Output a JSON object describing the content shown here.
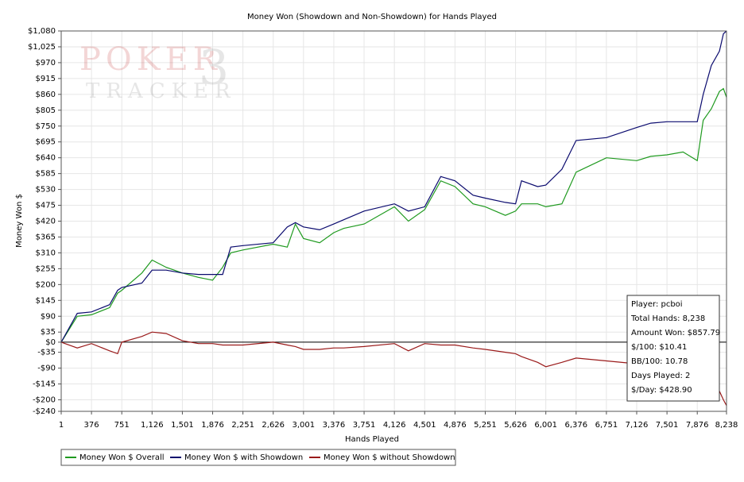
{
  "chart_data": {
    "type": "line",
    "title": "Money Won (Showdown and Non-Showdown) for Hands Played",
    "xlabel": "Hands Played",
    "ylabel": "Money Won $",
    "watermark": {
      "word1": "POKER",
      "word2": "TRACKER",
      "digit": "3"
    },
    "x": [
      1,
      200,
      376,
      600,
      700,
      751,
      1000,
      1126,
      1300,
      1501,
      1700,
      1876,
      2000,
      2100,
      2251,
      2626,
      2800,
      2900,
      3001,
      3200,
      3376,
      3500,
      3751,
      4126,
      4300,
      4501,
      4700,
      4876,
      5100,
      5251,
      5500,
      5626,
      5700,
      5900,
      6001,
      6200,
      6376,
      6751,
      7126,
      7300,
      7501,
      7700,
      7876,
      7950,
      8050,
      8150,
      8200,
      8238
    ],
    "series": [
      {
        "name": "Money Won $ Overall",
        "color": "#1f9a1f",
        "values": [
          0,
          90,
          95,
          120,
          170,
          180,
          240,
          285,
          260,
          240,
          225,
          215,
          260,
          310,
          320,
          340,
          330,
          410,
          360,
          345,
          380,
          395,
          410,
          470,
          420,
          460,
          560,
          540,
          480,
          470,
          440,
          455,
          480,
          480,
          470,
          480,
          590,
          640,
          630,
          645,
          650,
          660,
          630,
          770,
          810,
          870,
          880,
          850
        ]
      },
      {
        "name": "Money Won $ with Showdown",
        "color": "#0a0a6e",
        "values": [
          0,
          100,
          105,
          130,
          180,
          190,
          205,
          250,
          250,
          240,
          235,
          235,
          235,
          330,
          335,
          345,
          400,
          415,
          400,
          390,
          410,
          425,
          455,
          480,
          455,
          470,
          575,
          560,
          510,
          500,
          485,
          480,
          560,
          540,
          545,
          600,
          700,
          710,
          745,
          760,
          765,
          765,
          765,
          860,
          960,
          1010,
          1070,
          1080
        ]
      },
      {
        "name": "Money Won $ without Showdown",
        "color": "#9a1a1a",
        "values": [
          0,
          -20,
          -5,
          -30,
          -40,
          0,
          20,
          35,
          30,
          5,
          -5,
          -5,
          -10,
          -10,
          -10,
          0,
          -10,
          -15,
          -25,
          -25,
          -20,
          -20,
          -15,
          -5,
          -30,
          -5,
          -10,
          -10,
          -20,
          -25,
          -35,
          -40,
          -50,
          -70,
          -85,
          -70,
          -55,
          -65,
          -75,
          -80,
          -90,
          -100,
          -110,
          -120,
          -140,
          -170,
          -200,
          -220
        ]
      }
    ],
    "xlim": [
      1,
      8238
    ],
    "xticks": [
      1,
      376,
      751,
      {
        "value": 1126,
        "label": "1,126"
      },
      {
        "value": 1501,
        "label": "1,501"
      },
      {
        "value": 1876,
        "label": "1,876"
      },
      {
        "value": 2251,
        "label": "2,251"
      },
      {
        "value": 2626,
        "label": "2,626"
      },
      {
        "value": 3001,
        "label": "3,001"
      },
      {
        "value": 3376,
        "label": "3,376"
      },
      {
        "value": 3751,
        "label": "3,751"
      },
      {
        "value": 4126,
        "label": "4,126"
      },
      {
        "value": 4501,
        "label": "4,501"
      },
      {
        "value": 4876,
        "label": "4,876"
      },
      {
        "value": 5251,
        "label": "5,251"
      },
      {
        "value": 5626,
        "label": "5,626"
      },
      {
        "value": 6001,
        "label": "6,001"
      },
      {
        "value": 6376,
        "label": "6,376"
      },
      {
        "value": 6751,
        "label": "6,751"
      },
      {
        "value": 7126,
        "label": "7,126"
      },
      {
        "value": 7501,
        "label": "7,501"
      },
      {
        "value": 7876,
        "label": "7,876"
      },
      {
        "value": 8238,
        "label": "8,238"
      }
    ],
    "ylim": [
      -240,
      1080
    ],
    "yticks": [
      {
        "value": 1080,
        "label": "$1,080"
      },
      {
        "value": 1025,
        "label": "$1,025"
      },
      {
        "value": 970,
        "label": "$970"
      },
      {
        "value": 915,
        "label": "$915"
      },
      {
        "value": 860,
        "label": "$860"
      },
      {
        "value": 805,
        "label": "$805"
      },
      {
        "value": 750,
        "label": "$750"
      },
      {
        "value": 695,
        "label": "$695"
      },
      {
        "value": 640,
        "label": "$640"
      },
      {
        "value": 585,
        "label": "$585"
      },
      {
        "value": 530,
        "label": "$530"
      },
      {
        "value": 475,
        "label": "$475"
      },
      {
        "value": 420,
        "label": "$420"
      },
      {
        "value": 365,
        "label": "$365"
      },
      {
        "value": 310,
        "label": "$310"
      },
      {
        "value": 255,
        "label": "$255"
      },
      {
        "value": 200,
        "label": "$200"
      },
      {
        "value": 145,
        "label": "$145"
      },
      {
        "value": 90,
        "label": "$90"
      },
      {
        "value": 35,
        "label": "$35"
      },
      {
        "value": 0,
        "label": "$0"
      },
      {
        "value": -35,
        "label": "-$35"
      },
      {
        "value": -90,
        "label": "-$90"
      },
      {
        "value": -145,
        "label": "-$145"
      },
      {
        "value": -200,
        "label": "-$200"
      },
      {
        "value": -240,
        "label": "-$240"
      }
    ],
    "grid": true,
    "info_box": [
      "Player: pcboi",
      "Total Hands: 8,238",
      "Amount Won: $857.79",
      "$/100: $10.41",
      "BB/100: 10.78",
      "Days Played: 2",
      "$/Day: $428.90"
    ]
  }
}
